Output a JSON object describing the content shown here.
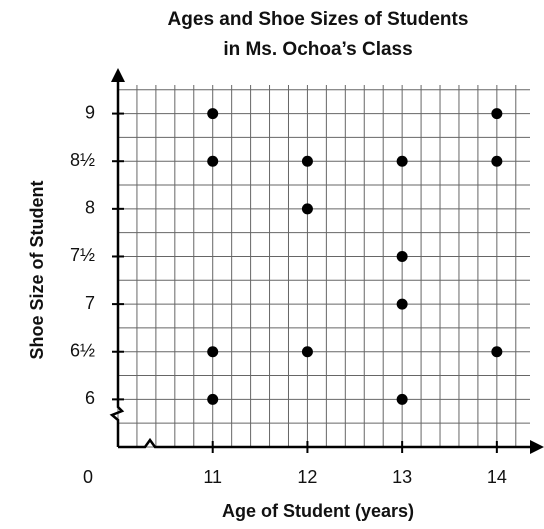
{
  "chart_data": {
    "type": "scatter",
    "title_lines": [
      "Ages and Shoe Sizes of Students",
      "in Ms. Ochoa’s Class"
    ],
    "x_label": "Age of Student (years)",
    "y_label": "Shoe Size of Student",
    "origin_label": "0",
    "x": [
      11,
      11,
      11,
      11,
      12,
      12,
      12,
      13,
      13,
      13,
      13,
      14,
      14,
      14
    ],
    "values": [
      9,
      8.5,
      6.5,
      6,
      8.5,
      8,
      6.5,
      8.5,
      7.5,
      7,
      6,
      9,
      8.5,
      6.5
    ],
    "color": "#000000",
    "xlim": [
      10,
      14.35
    ],
    "xticks": [
      11,
      12,
      13,
      14
    ],
    "ylim": [
      5.5,
      9.3
    ],
    "yticks": [
      6,
      {
        "value": 6.5,
        "label": "6½"
      },
      7,
      {
        "value": 7.5,
        "label": "7½"
      },
      8,
      {
        "value": 8.5,
        "label": "8½"
      },
      9
    ],
    "grid": true
  }
}
